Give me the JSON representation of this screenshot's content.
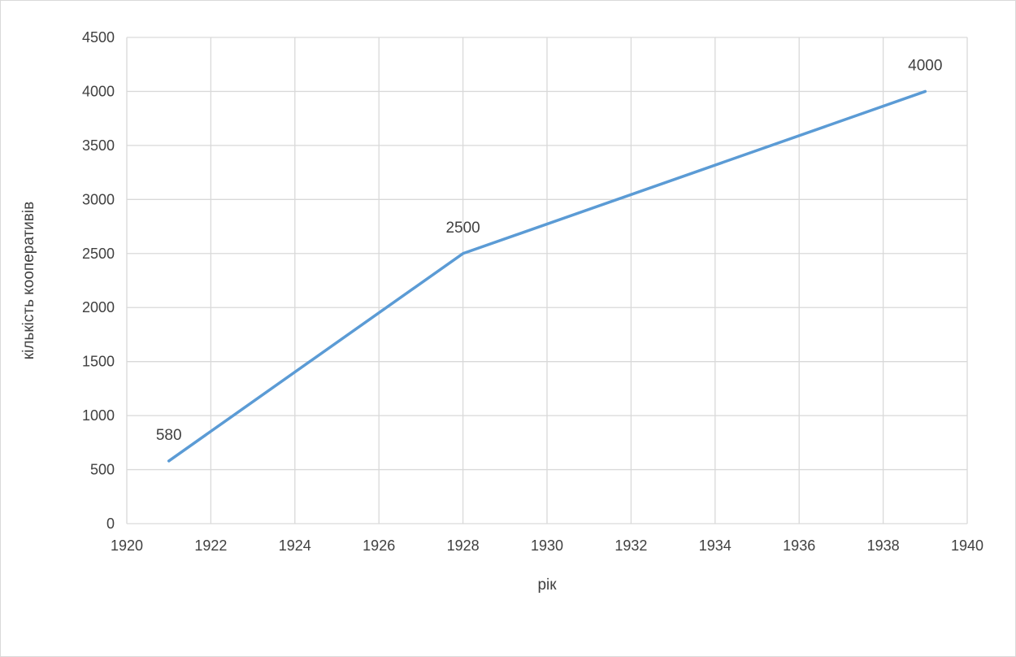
{
  "chart_data": {
    "type": "line",
    "title": "",
    "xlabel": "рік",
    "ylabel": "кількість кооперативів",
    "xlim": [
      1920,
      1940
    ],
    "ylim": [
      0,
      4500
    ],
    "x_ticks": [
      1920,
      1922,
      1924,
      1926,
      1928,
      1930,
      1932,
      1934,
      1936,
      1938,
      1940
    ],
    "y_ticks": [
      0,
      500,
      1000,
      1500,
      2000,
      2500,
      3000,
      3500,
      4000,
      4500
    ],
    "grid": true,
    "legend": "none",
    "series": [
      {
        "color": "#5b9bd5",
        "points": [
          {
            "x": 1921,
            "y": 580,
            "label": "580"
          },
          {
            "x": 1928,
            "y": 2500,
            "label": "2500"
          },
          {
            "x": 1939,
            "y": 4000,
            "label": "4000"
          }
        ]
      }
    ]
  },
  "colors": {
    "gridline": "#d9d9d9",
    "text": "#404040",
    "line": "#5b9bd5"
  }
}
